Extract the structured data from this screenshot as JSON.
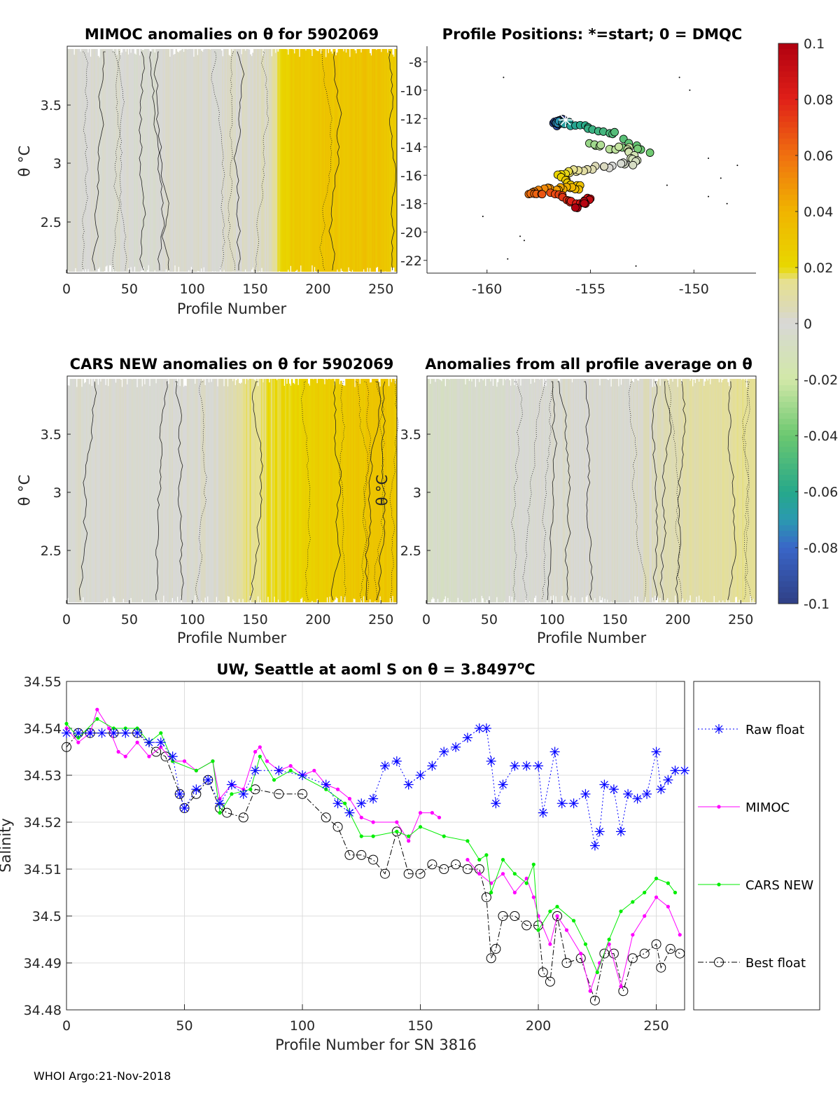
{
  "footer": "WHOI Argo:21-Nov-2018",
  "colormap": {
    "stops": [
      [
        -0.1,
        "#2f3f85"
      ],
      [
        -0.08,
        "#3a66c8"
      ],
      [
        -0.07,
        "#2a9ab0"
      ],
      [
        -0.06,
        "#26a88a"
      ],
      [
        -0.04,
        "#6cc870"
      ],
      [
        -0.02,
        "#d2e8a8"
      ],
      [
        -0.005,
        "#d6dcc8"
      ],
      [
        0,
        "#d8d8d8"
      ],
      [
        0.005,
        "#dcdab8"
      ],
      [
        0.015,
        "#e6e090"
      ],
      [
        0.02,
        "#e8d800"
      ],
      [
        0.04,
        "#f0b400"
      ],
      [
        0.06,
        "#f07010"
      ],
      [
        0.08,
        "#e02018"
      ],
      [
        0.1,
        "#b00010"
      ]
    ],
    "ticks": [
      "0.1",
      "0.08",
      "0.06",
      "0.04",
      "0.02",
      "0",
      "-0.02",
      "-0.04",
      "-0.06",
      "-0.08",
      "-0.1"
    ]
  },
  "chart_data": [
    {
      "type": "heatmap",
      "title": "MIMOC anomalies on θ  for 5902069",
      "xlabel": "Profile Number",
      "ylabel": "θ °C",
      "xlim": [
        0,
        262
      ],
      "ylim": [
        2.06,
        4.0
      ],
      "xticks": [
        "0",
        "50",
        "100",
        "150",
        "200",
        "250"
      ],
      "yticks": [
        "3.5",
        "3",
        "2.5"
      ],
      "profile_bins": [
        0,
        20,
        40,
        60,
        80,
        100,
        120,
        140,
        160,
        170,
        180,
        200,
        220,
        240,
        262
      ],
      "anomaly": [
        0.0,
        0.0,
        0.0,
        -0.002,
        0.0,
        0.0,
        0.001,
        0.002,
        0.004,
        0.022,
        0.028,
        0.03,
        0.03,
        0.032,
        0.028
      ]
    },
    {
      "type": "scatter",
      "title": "Profile Positions: *=start; 0 = DMQC",
      "xlim": [
        -162.9,
        -147
      ],
      "ylim": [
        -22.9,
        -6.9
      ],
      "xticks": [
        "-160",
        "-155",
        "-150"
      ],
      "yticks": [
        "-8",
        "-10",
        "-12",
        "-14",
        "-16",
        "-18",
        "-20",
        "-22"
      ],
      "track_profile": [
        0,
        15,
        40,
        55,
        70,
        80,
        90,
        105,
        120,
        130,
        145,
        160,
        175,
        195,
        210,
        225,
        240,
        250,
        262
      ],
      "track_lon": [
        -156.2,
        -156.7,
        -156.5,
        -155.3,
        -153.8,
        -152.2,
        -155.2,
        -153.1,
        -152.8,
        -153.8,
        -155.5,
        -156.5,
        -155.5,
        -157.0,
        -158.0,
        -156.5,
        -155.6,
        -155.0,
        -155.6
      ],
      "track_lat": [
        -12.1,
        -12.4,
        -12.2,
        -12.6,
        -13.1,
        -14.4,
        -13.8,
        -14.2,
        -15.1,
        -15.3,
        -15.6,
        -16.0,
        -16.9,
        -16.9,
        -17.3,
        -17.4,
        -18.1,
        -17.6,
        -18.3
      ]
    },
    {
      "type": "heatmap",
      "title": "CARS NEW anomalies on θ for 5902069",
      "xlabel": "Profile Number",
      "ylabel": "θ °C",
      "xlim": [
        0,
        262
      ],
      "ylim": [
        2.06,
        4.0
      ],
      "xticks": [
        "0",
        "50",
        "100",
        "150",
        "200",
        "250"
      ],
      "yticks": [
        "3.5",
        "3",
        "2.5"
      ],
      "profile_bins": [
        0,
        20,
        40,
        60,
        80,
        100,
        120,
        130,
        140,
        160,
        180,
        200,
        220,
        240,
        262
      ],
      "anomaly": [
        0.0,
        0.0,
        0.0,
        0.0,
        0.0,
        0.0,
        0.002,
        0.006,
        0.014,
        0.018,
        0.022,
        0.026,
        0.028,
        0.03,
        0.03
      ]
    },
    {
      "type": "heatmap",
      "title": "Anomalies from all profile average on θ",
      "xlabel": "Profile Number",
      "ylabel": "θ °C",
      "xlim": [
        0,
        262
      ],
      "ylim": [
        2.06,
        4.0
      ],
      "xticks": [
        "0",
        "50",
        "100",
        "150",
        "200",
        "250"
      ],
      "yticks": [
        "3.5",
        "3",
        "2.5"
      ],
      "profile_bins": [
        0,
        20,
        40,
        60,
        80,
        100,
        120,
        140,
        160,
        180,
        200,
        220,
        240,
        262
      ],
      "anomaly": [
        -0.006,
        -0.005,
        -0.004,
        -0.002,
        0.0,
        0.0,
        0.0,
        0.0,
        0.0,
        0.004,
        0.008,
        0.01,
        0.012,
        0.014
      ]
    },
    {
      "type": "line",
      "title": "UW, Seattle at aoml S on θ = 3.8497",
      "title_sup": "o",
      "title_unit": "C",
      "xlabel": "Profile Number for SN 3816",
      "ylabel": "Salinity",
      "xlim": [
        0,
        262
      ],
      "ylim": [
        34.48,
        34.55
      ],
      "grid": true,
      "legend": "right-outside",
      "xticks": [
        "0",
        "50",
        "100",
        "150",
        "200",
        "250"
      ],
      "yticks": [
        "34.55",
        "34.54",
        "34.53",
        "34.52",
        "34.51",
        "34.5",
        "34.49",
        "34.48"
      ],
      "series": [
        {
          "name": "Raw float",
          "color": "#0000ff",
          "marker": "asterisk",
          "line": "dotted",
          "x": [
            0,
            5,
            10,
            15,
            20,
            25,
            30,
            35,
            40,
            45,
            48,
            50,
            55,
            60,
            65,
            70,
            75,
            80,
            90,
            100,
            110,
            115,
            120,
            125,
            130,
            135,
            140,
            145,
            150,
            155,
            160,
            165,
            170,
            175,
            178,
            180,
            182,
            185,
            190,
            195,
            200,
            202,
            207,
            210,
            215,
            220,
            224,
            226,
            228,
            232,
            235,
            238,
            242,
            246,
            250,
            252,
            255,
            258,
            262
          ],
          "y": [
            34.539,
            34.539,
            34.539,
            34.539,
            34.539,
            34.539,
            34.539,
            34.537,
            34.537,
            34.534,
            34.526,
            34.523,
            34.527,
            34.529,
            34.524,
            34.528,
            34.526,
            34.531,
            34.531,
            34.53,
            34.528,
            34.524,
            34.522,
            34.524,
            34.525,
            34.532,
            34.533,
            34.528,
            34.53,
            34.532,
            34.535,
            34.536,
            34.538,
            34.54,
            34.54,
            34.533,
            34.524,
            34.528,
            34.532,
            34.532,
            34.532,
            34.522,
            34.535,
            34.524,
            34.524,
            34.526,
            34.515,
            34.518,
            34.528,
            34.527,
            34.518,
            34.526,
            34.525,
            34.526,
            34.535,
            34.527,
            34.529,
            34.531,
            34.531
          ]
        },
        {
          "name": "MIMOC",
          "color": "#ff00ff",
          "marker": "dot",
          "line": "solid",
          "x": [
            0,
            5,
            10,
            13,
            18,
            22,
            25,
            30,
            35,
            40,
            45,
            50,
            55,
            62,
            65,
            70,
            75,
            80,
            82,
            85,
            90,
            95,
            100,
            105,
            110,
            115,
            120,
            125,
            130,
            140,
            145,
            150,
            155,
            158,
            165,
            170,
            175,
            180,
            185,
            190,
            195,
            198,
            200,
            205,
            208,
            212,
            218,
            222,
            226,
            230,
            235,
            240,
            245,
            250,
            255,
            260
          ],
          "y": [
            34.54,
            34.537,
            34.539,
            34.544,
            34.54,
            34.535,
            34.534,
            34.537,
            34.534,
            34.536,
            34.533,
            34.533,
            34.531,
            34.533,
            34.525,
            34.528,
            34.527,
            34.535,
            34.536,
            34.533,
            34.531,
            34.532,
            34.53,
            34.531,
            34.528,
            34.527,
            34.525,
            34.521,
            34.52,
            34.52,
            34.516,
            34.522,
            34.522,
            34.521,
            null,
            34.512,
            34.509,
            34.507,
            34.509,
            34.505,
            34.508,
            34.504,
            34.5,
            34.494,
            34.5,
            34.497,
            34.492,
            34.484,
            34.49,
            34.494,
            34.485,
            34.496,
            34.5,
            34.504,
            34.502,
            34.496
          ]
        },
        {
          "name": "CARS NEW",
          "color": "#00ee00",
          "marker": "dot",
          "line": "solid",
          "x": [
            0,
            5,
            13,
            20,
            25,
            30,
            35,
            40,
            45,
            55,
            62,
            65,
            70,
            78,
            82,
            88,
            95,
            110,
            118,
            125,
            130,
            140,
            145,
            150,
            160,
            170,
            175,
            178,
            180,
            185,
            190,
            195,
            198,
            200,
            205,
            208,
            215,
            220,
            225,
            230,
            235,
            240,
            245,
            250,
            255,
            258
          ],
          "y": [
            34.541,
            34.538,
            34.542,
            34.54,
            34.54,
            34.54,
            34.537,
            34.539,
            34.533,
            34.531,
            34.533,
            34.522,
            34.526,
            34.527,
            34.534,
            34.529,
            34.531,
            34.527,
            34.524,
            34.517,
            34.517,
            34.518,
            34.517,
            34.519,
            34.517,
            34.516,
            34.512,
            34.513,
            34.505,
            34.512,
            34.509,
            34.507,
            34.511,
            34.497,
            34.501,
            34.502,
            34.499,
            34.494,
            34.488,
            34.495,
            34.501,
            34.503,
            34.505,
            34.508,
            34.507,
            34.505
          ]
        },
        {
          "name": "Best float",
          "color": "#000000",
          "marker": "circle",
          "line": "dashdot",
          "x": [
            0,
            5,
            10,
            20,
            30,
            38,
            42,
            48,
            50,
            55,
            60,
            65,
            68,
            75,
            80,
            90,
            100,
            110,
            115,
            120,
            125,
            130,
            135,
            140,
            145,
            150,
            155,
            160,
            165,
            170,
            175,
            178,
            180,
            182,
            185,
            190,
            195,
            200,
            202,
            205,
            208,
            212,
            218,
            224,
            228,
            232,
            236,
            240,
            245,
            250,
            252,
            256,
            260
          ],
          "y": [
            34.536,
            34.539,
            34.539,
            34.539,
            34.539,
            34.535,
            34.534,
            34.526,
            34.523,
            34.526,
            34.529,
            34.523,
            34.522,
            34.521,
            34.527,
            34.526,
            34.526,
            34.521,
            34.519,
            34.513,
            34.513,
            34.512,
            34.509,
            34.518,
            34.509,
            34.509,
            34.511,
            34.51,
            34.511,
            34.51,
            34.51,
            34.504,
            34.491,
            34.493,
            34.5,
            34.5,
            34.498,
            34.498,
            34.488,
            34.486,
            34.5,
            34.49,
            34.491,
            34.482,
            34.492,
            34.492,
            34.484,
            34.491,
            34.492,
            34.494,
            34.489,
            34.493,
            34.492
          ]
        }
      ]
    }
  ]
}
